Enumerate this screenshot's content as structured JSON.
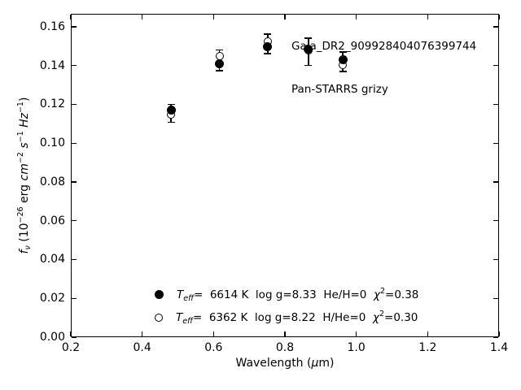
{
  "chart_data": {
    "type": "scatter",
    "title": "",
    "xlabel": "Wavelength (μm)",
    "ylabel": "f_ν (10^−26 erg cm^−2 s^−1 Hz^−1)",
    "xlim": [
      0.2,
      1.4
    ],
    "ylim": [
      0.0,
      0.1667
    ],
    "grid": false,
    "tick_style": "inward ticks on all four spines",
    "xticks": {
      "values": [
        0.2,
        0.4,
        0.6,
        0.8,
        1.0,
        1.2,
        1.4
      ],
      "labels": [
        "0.2",
        "0.4",
        "0.6",
        "0.8",
        "1.0",
        "1.2",
        "1.4"
      ]
    },
    "yticks": {
      "values": [
        0.0,
        0.02,
        0.04,
        0.06,
        0.08,
        0.1,
        0.12,
        0.14,
        0.16
      ],
      "labels": [
        "0.00",
        "0.02",
        "0.04",
        "0.06",
        "0.08",
        "0.10",
        "0.12",
        "0.14",
        "0.16"
      ]
    },
    "bands": [
      "g",
      "r",
      "i",
      "z",
      "y"
    ],
    "x": [
      0.481,
      0.617,
      0.752,
      0.866,
      0.962
    ],
    "observed": {
      "flux": [
        0.1155,
        0.1427,
        0.1512,
        0.1472,
        0.142
      ],
      "err": [
        0.0046,
        0.0053,
        0.005,
        0.007,
        0.005
      ]
    },
    "series": [
      {
        "name": "Teff= 6614 K  log g=8.33  He/H=0  chi2=0.38",
        "marker": "filled-circle",
        "values": [
          0.1169,
          0.1408,
          0.1497,
          0.1483,
          0.1431
        ]
      },
      {
        "name": "Teff= 6362 K  log g=8.22  H/He=0  chi2=0.30",
        "marker": "open-circle",
        "values": [
          0.1148,
          0.145,
          0.1523,
          0.148,
          0.1403
        ]
      }
    ],
    "annotations": [
      "Gaia_DR2_909928404076399744",
      "Pan-STARRS grizy"
    ],
    "legend_position": "lower center",
    "colors": {
      "foreground": "#000000",
      "background": "#ffffff"
    }
  },
  "xlabel_parts": {
    "pre": "Wavelength (",
    "mu": "μ",
    "post": "m)"
  },
  "ylabel_parts": {
    "f": "f",
    "nu": "ν",
    "p1": " (10",
    "e26": "−26",
    "erg": " erg ",
    "cm": "cm",
    "e2": "−2",
    "s": " s",
    "e1": "−1",
    "hz": " Hz",
    "e1b": "−1",
    "close": ")"
  },
  "annotation": {
    "line1": "Gaia_DR2_909928404076399744",
    "line2": "Pan-STARRS grizy"
  },
  "legend": {
    "rows": [
      {
        "T": "T",
        "T_sub": "eff",
        "mid": "=  6614 K  log g=8.33  He/H=0  ",
        "chi": "χ",
        "chi_sup": "2",
        "tail": "=0.38"
      },
      {
        "T": "T",
        "T_sub": "eff",
        "mid": "=  6362 K  log g=8.22  H/He=0  ",
        "chi": "χ",
        "chi_sup": "2",
        "tail": "=0.30"
      }
    ]
  }
}
